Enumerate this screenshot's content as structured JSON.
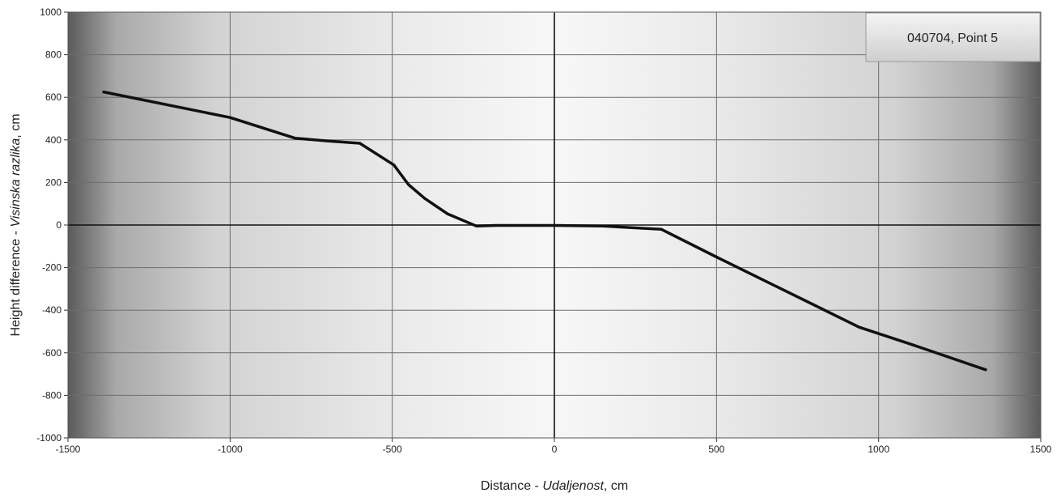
{
  "chart_data": {
    "type": "line",
    "xlabel_main": "Distance - ",
    "xlabel_italic": "Udaljenost",
    "xlabel_unit": ", cm",
    "ylabel_main": "Height difference - ",
    "ylabel_italic": "Visinska razlika",
    "ylabel_unit": ", cm",
    "xlim": [
      -1500,
      1500
    ],
    "ylim": [
      -1000,
      1000
    ],
    "x_ticks": [
      -1500,
      -1000,
      -500,
      0,
      500,
      1000,
      1500
    ],
    "y_ticks": [
      1000,
      800,
      600,
      400,
      200,
      0,
      -200,
      -400,
      -600,
      -800,
      -1000
    ],
    "grid": true,
    "legend_position": "top-right",
    "series": [
      {
        "name": "040704, Point 5",
        "color": "#111111",
        "points": [
          [
            -1390,
            625
          ],
          [
            -1000,
            505
          ],
          [
            -800,
            408
          ],
          [
            -700,
            395
          ],
          [
            -600,
            384
          ],
          [
            -495,
            282
          ],
          [
            -450,
            190
          ],
          [
            -400,
            125
          ],
          [
            -330,
            53
          ],
          [
            -240,
            -5
          ],
          [
            -180,
            -2
          ],
          [
            0,
            -2
          ],
          [
            150,
            -5
          ],
          [
            330,
            -20
          ],
          [
            500,
            -150
          ],
          [
            700,
            -300
          ],
          [
            940,
            -480
          ],
          [
            1100,
            -560
          ],
          [
            1330,
            -680
          ]
        ]
      }
    ]
  }
}
